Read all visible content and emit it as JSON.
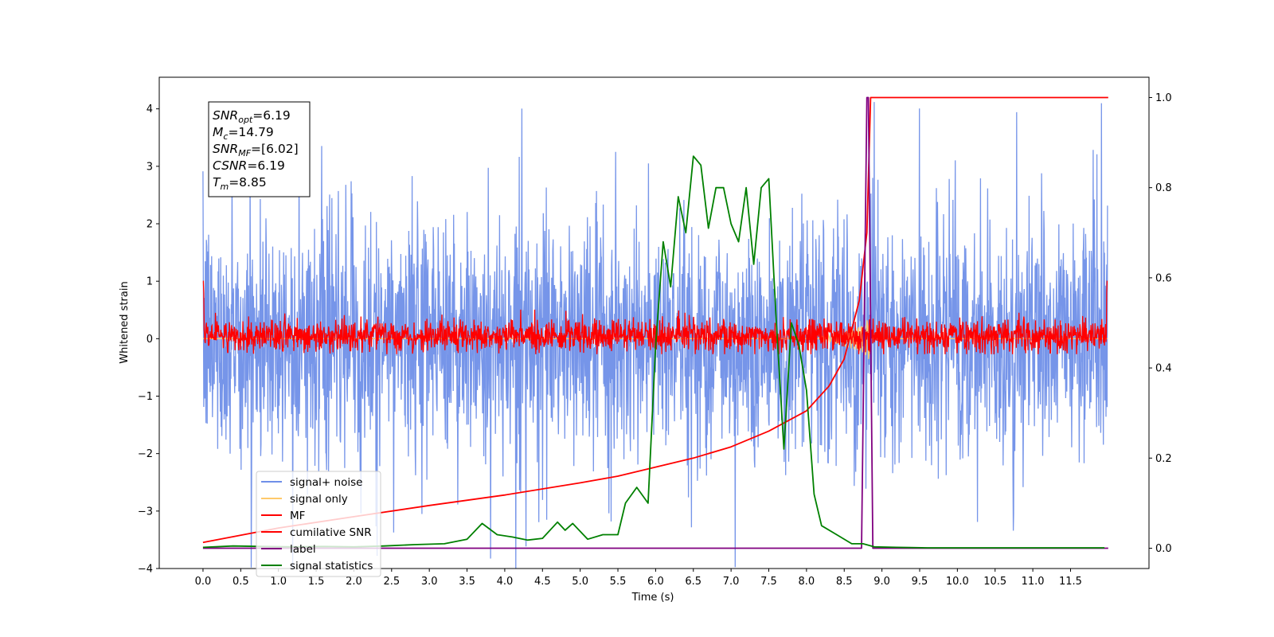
{
  "chart_data": {
    "type": "line",
    "xlabel": "Time (s)",
    "ylabel": "Whitened strain",
    "xlim": [
      -0.58,
      12.54
    ],
    "ylim_left": [
      -4.0,
      4.55
    ],
    "ylim_right": [
      -0.045,
      1.045
    ],
    "x_ticks": [
      "0.0",
      "0.5",
      "1.0",
      "1.5",
      "2.0",
      "2.5",
      "3.0",
      "3.5",
      "4.0",
      "4.5",
      "5.0",
      "5.5",
      "6.0",
      "6.5",
      "7.0",
      "7.5",
      "8.0",
      "8.5",
      "9.0",
      "9.5",
      "10.0",
      "10.5",
      "11.0",
      "11.5"
    ],
    "y_ticks_left": [
      "−4",
      "−3",
      "−2",
      "−1",
      "0",
      "1",
      "2",
      "3",
      "4"
    ],
    "y_ticks_right": [
      "0.0",
      "0.2",
      "0.4",
      "0.6",
      "0.8",
      "1.0"
    ],
    "grid": false,
    "legend_position": "lower-left",
    "series": [
      {
        "name": "signal+ noise",
        "axis": "left",
        "color": "#6f8fe8",
        "t_range": [
          0,
          11.99
        ],
        "abs_max": 4.18
      },
      {
        "name": "signal only",
        "axis": "left",
        "color": "#ffc96b",
        "t_range": [
          0,
          11.99
        ],
        "peak_time": 8.85
      },
      {
        "name": "MF",
        "axis": "left",
        "color": "#ff0000",
        "t_range": [
          0,
          11.99
        ],
        "amplitude_range": [
          -0.27,
          0.6
        ]
      },
      {
        "name": "cumilative SNR",
        "axis": "right",
        "color": "#ff0000",
        "x": [
          0.0,
          1.0,
          2.0,
          3.0,
          4.0,
          5.0,
          5.5,
          6.0,
          6.5,
          7.0,
          7.5,
          8.0,
          8.3,
          8.5,
          8.7,
          8.8,
          8.85,
          9.0,
          12.0
        ],
        "y": [
          0.013,
          0.045,
          0.07,
          0.095,
          0.118,
          0.145,
          0.16,
          0.18,
          0.2,
          0.225,
          0.26,
          0.305,
          0.36,
          0.42,
          0.55,
          0.7,
          1.0,
          1.0,
          1.0
        ]
      },
      {
        "name": "label",
        "axis": "right",
        "color": "#800080",
        "x": [
          0.0,
          8.73,
          8.8,
          8.82,
          8.88,
          12.0
        ],
        "y": [
          0.0,
          0.0,
          1.0,
          1.0,
          0.0,
          0.0
        ]
      },
      {
        "name": "signal statistics",
        "axis": "right",
        "color": "#008000",
        "x": [
          0.0,
          0.4,
          0.8,
          1.2,
          1.6,
          2.0,
          2.4,
          2.8,
          3.2,
          3.5,
          3.7,
          3.9,
          4.1,
          4.3,
          4.5,
          4.7,
          4.8,
          4.9,
          5.1,
          5.3,
          5.5,
          5.6,
          5.75,
          5.9,
          6.0,
          6.1,
          6.2,
          6.3,
          6.4,
          6.5,
          6.6,
          6.7,
          6.8,
          6.9,
          7.0,
          7.1,
          7.2,
          7.3,
          7.4,
          7.5,
          7.6,
          7.7,
          7.8,
          7.9,
          8.0,
          8.1,
          8.2,
          8.4,
          8.6,
          8.75,
          8.9,
          9.2,
          9.6,
          10.0,
          11.0,
          11.95
        ],
        "y": [
          0.002,
          0.005,
          0.004,
          0.003,
          0.004,
          0.003,
          0.005,
          0.008,
          0.01,
          0.02,
          0.055,
          0.03,
          0.025,
          0.018,
          0.022,
          0.058,
          0.04,
          0.055,
          0.02,
          0.03,
          0.03,
          0.1,
          0.135,
          0.1,
          0.45,
          0.68,
          0.58,
          0.78,
          0.7,
          0.87,
          0.85,
          0.71,
          0.8,
          0.8,
          0.72,
          0.68,
          0.8,
          0.63,
          0.8,
          0.82,
          0.5,
          0.22,
          0.5,
          0.45,
          0.35,
          0.12,
          0.05,
          0.03,
          0.01,
          0.01,
          0.003,
          0.002,
          0.001,
          0.001,
          0.001,
          0.001
        ]
      }
    ],
    "annotation_box": [
      {
        "symbol": "SNR",
        "sub": "opt",
        "value": "=6.19"
      },
      {
        "symbol": "M",
        "sub": "c",
        "value": "=14.79"
      },
      {
        "symbol": "SNR",
        "sub": "MF",
        "value": "=[6.02]"
      },
      {
        "symbol": "CSNR",
        "sub": "",
        "value": "=6.19"
      },
      {
        "symbol": "T",
        "sub": "m",
        "value": "=8.85"
      }
    ]
  }
}
